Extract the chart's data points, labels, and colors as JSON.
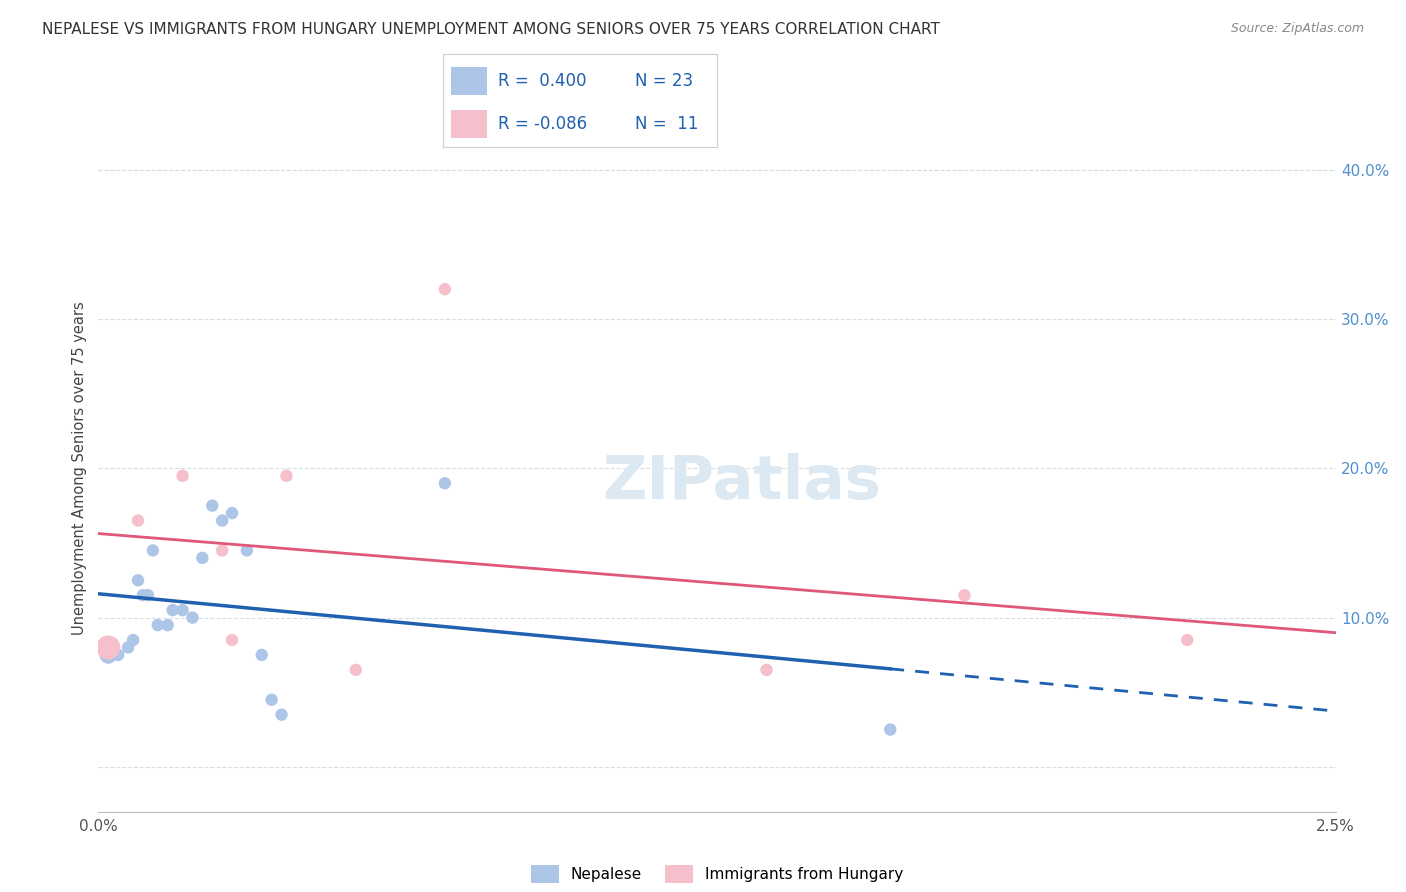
{
  "title": "NEPALESE VS IMMIGRANTS FROM HUNGARY UNEMPLOYMENT AMONG SENIORS OVER 75 YEARS CORRELATION CHART",
  "source": "Source: ZipAtlas.com",
  "ylabel": "Unemployment Among Seniors over 75 years",
  "xlim": [
    0.0,
    2.5
  ],
  "ylim": [
    -3.0,
    43.0
  ],
  "yticks_right": [
    0.0,
    10.0,
    20.0,
    30.0,
    40.0
  ],
  "yticks_right_labels": [
    "",
    "10.0%",
    "20.0%",
    "30.0%",
    "40.0%"
  ],
  "nepalese_x": [
    0.02,
    0.04,
    0.06,
    0.07,
    0.08,
    0.09,
    0.1,
    0.11,
    0.12,
    0.14,
    0.15,
    0.17,
    0.19,
    0.21,
    0.23,
    0.25,
    0.27,
    0.3,
    0.33,
    0.35,
    0.37,
    0.7,
    1.6
  ],
  "nepalese_y": [
    7.5,
    7.5,
    8.0,
    8.5,
    12.5,
    11.5,
    11.5,
    14.5,
    9.5,
    9.5,
    10.5,
    10.5,
    10.0,
    14.0,
    17.5,
    16.5,
    17.0,
    14.5,
    7.5,
    4.5,
    3.5,
    19.0,
    2.5
  ],
  "nepalese_sizes": [
    160,
    80,
    80,
    80,
    80,
    80,
    80,
    80,
    80,
    80,
    80,
    80,
    80,
    80,
    80,
    80,
    80,
    80,
    80,
    80,
    80,
    80,
    80
  ],
  "hungary_x": [
    0.02,
    0.08,
    0.17,
    0.25,
    0.27,
    0.38,
    0.52,
    0.7,
    1.35,
    1.75,
    2.2
  ],
  "hungary_y": [
    8.0,
    16.5,
    19.5,
    14.5,
    8.5,
    19.5,
    6.5,
    32.0,
    6.5,
    11.5,
    8.5
  ],
  "hungary_sizes": [
    300,
    80,
    80,
    80,
    80,
    80,
    80,
    80,
    80,
    80,
    80
  ],
  "blue_color": "#adc6e8",
  "blue_line_color": "#2060b0",
  "pink_color": "#f5c0cc",
  "pink_line_color": "#e05878",
  "grid_color": "#d5dde5",
  "background_color": "#ffffff",
  "watermark_color": "#dce8f2",
  "legend_box_color": "#ffffff",
  "legend_border_color": "#c8d0d8",
  "right_axis_color": "#5090d0",
  "title_color": "#333333",
  "source_color": "#888888"
}
